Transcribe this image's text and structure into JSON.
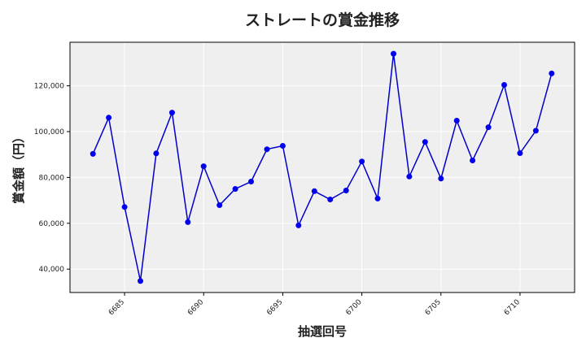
{
  "chart_data": {
    "type": "line",
    "title": "ストレートの賞金推移",
    "xlabel": "抽選回号",
    "ylabel": "賞金額（円）",
    "x": [
      6683,
      6684,
      6685,
      6686,
      6687,
      6688,
      6689,
      6690,
      6691,
      6692,
      6693,
      6694,
      6695,
      6696,
      6697,
      6698,
      6699,
      6700,
      6701,
      6702,
      6703,
      6704,
      6705,
      6706,
      6707,
      6708,
      6709,
      6710,
      6711,
      6712
    ],
    "series": [
      {
        "values": [
          90300,
          106100,
          67100,
          34800,
          90500,
          108300,
          60500,
          84900,
          67900,
          75000,
          78200,
          92300,
          93800,
          59100,
          74000,
          70400,
          74300,
          87000,
          70800,
          134000,
          80400,
          95500,
          79500,
          104800,
          87400,
          101900,
          120400,
          90600,
          100400,
          125400
        ]
      }
    ],
    "xticks": [
      6685,
      6690,
      6695,
      6700,
      6705,
      6710
    ],
    "xtick_labels": [
      "6685",
      "6690",
      "6695",
      "6700",
      "6705",
      "6710"
    ],
    "yticks": [
      40000,
      60000,
      80000,
      100000,
      120000
    ],
    "ytick_labels": [
      "40,000",
      "60,000",
      "80,000",
      "100,000",
      "120,000"
    ],
    "xlim": [
      6681.55,
      6713.45
    ],
    "ylim": [
      29800,
      139000
    ],
    "grid": true,
    "colors": {
      "line": "#0000cc",
      "marker": "#0000ee",
      "plot_background": "#efefef",
      "grid": "#ffffff"
    }
  }
}
